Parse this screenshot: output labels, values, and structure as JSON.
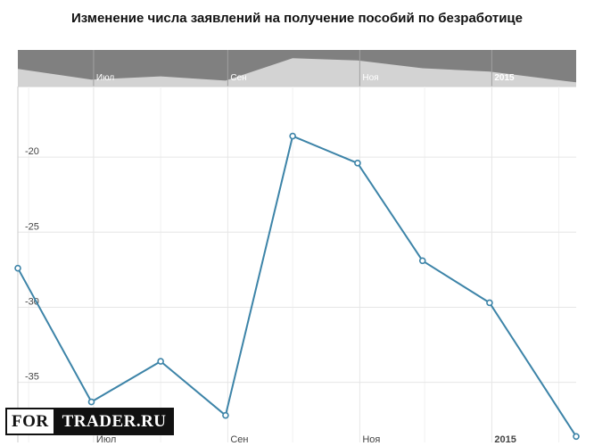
{
  "title": "Изменение числа заявлений на получение пособий по безработице",
  "colors": {
    "line": "#3d84a8",
    "navigator_bg": "#808080",
    "navigator_area": "#d3d3d3",
    "grid": "#e6e6e6"
  },
  "logo": {
    "left": "FOR",
    "right": "TRADER.RU"
  },
  "chart_data": {
    "type": "line",
    "title": "Изменение числа заявлений на получение пособий по безработице",
    "xlabel": "",
    "ylabel": "",
    "ylim": [
      -39,
      -15.3
    ],
    "xlim": [
      "2014-05-27",
      "2015-02-09"
    ],
    "x": [
      "2014-05-27",
      "2014-06-30",
      "2014-08-01",
      "2014-08-31",
      "2014-10-01",
      "2014-10-31",
      "2014-11-30",
      "2014-12-31",
      "2015-02-09"
    ],
    "values": [
      -27.4,
      -36.3,
      -33.6,
      -37.2,
      -18.6,
      -20.4,
      -26.9,
      -29.7,
      -38.6
    ],
    "y_ticks": [
      -20,
      -25,
      -30,
      -35
    ],
    "y_tick_labels": [
      "-20",
      "-25",
      "-30",
      "-35"
    ],
    "x_ticks": [
      "2014-07-01",
      "2014-09-01",
      "2014-11-01",
      "2015-01-01"
    ],
    "x_tick_labels": [
      "Июл",
      "Сен",
      "Ноя",
      "2015"
    ],
    "minor_x_ticks": [
      "2014-06-01",
      "2014-08-01",
      "2014-10-01",
      "2014-12-01",
      "2015-02-01"
    ],
    "grid": true,
    "navigator": {
      "x_tick_labels": [
        "Июл",
        "Сен",
        "Ноя",
        "2015"
      ]
    }
  }
}
